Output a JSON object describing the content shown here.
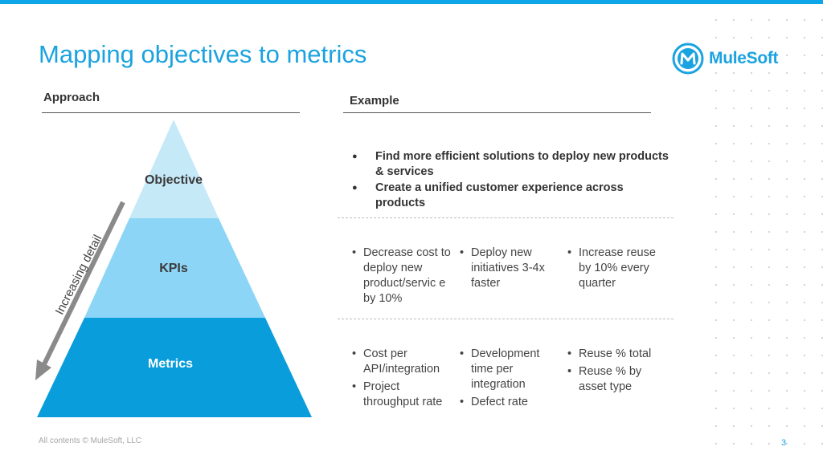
{
  "slide": {
    "title": "Mapping objectives to metrics",
    "brand": "MuleSoft",
    "footer": "All contents © MuleSoft, LLC",
    "page_number": "3"
  },
  "approach": {
    "heading": "Approach",
    "tiers": [
      "Objective",
      "KPIs",
      "Metrics"
    ],
    "arrow_label": "Increasing detail"
  },
  "example": {
    "heading": "Example",
    "objectives": [
      "Find more efficient solutions to deploy new products & services",
      "Create a unified customer experience across products"
    ],
    "kpis": [
      [
        "Decrease cost to deploy new product/servic e by 10%"
      ],
      [
        "Deploy new initiatives 3-4x faster"
      ],
      [
        "Increase reuse by 10% every quarter"
      ]
    ],
    "metrics": [
      [
        "Cost per API/integration",
        "Project throughput rate"
      ],
      [
        "Development time per integration",
        "Defect rate"
      ],
      [
        "Reuse % total",
        "Reuse % by asset type"
      ]
    ]
  },
  "colors": {
    "accent": "#1aa3e0",
    "tier_top": "#c6e9f8",
    "tier_mid": "#8cd5f6",
    "tier_bottom": "#0a9ddc"
  }
}
